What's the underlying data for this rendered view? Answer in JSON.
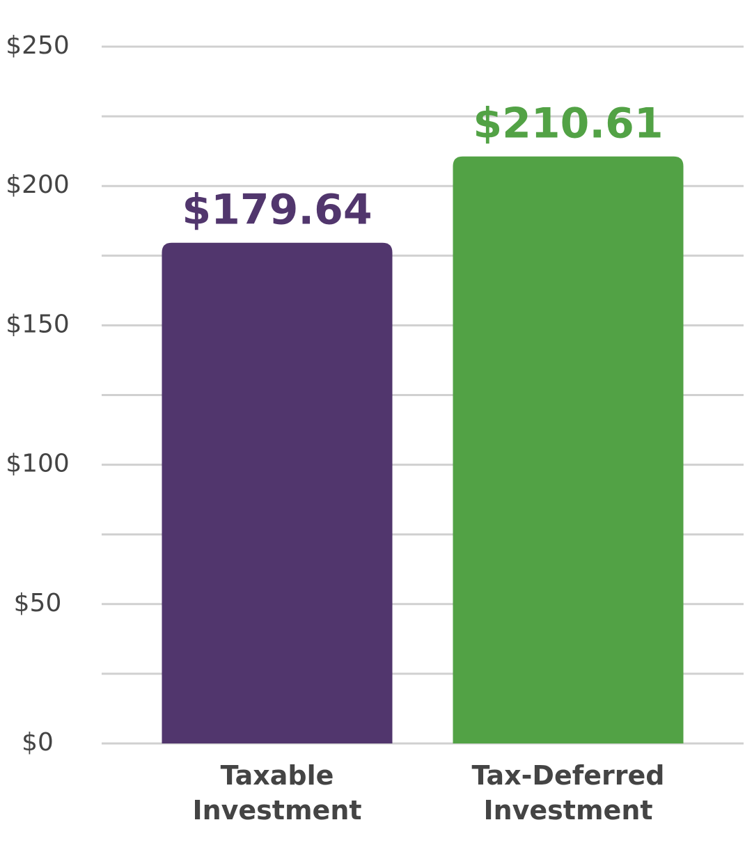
{
  "chart_data": {
    "type": "bar",
    "categories": [
      "Taxable\nInvestment",
      "Tax-Deferred\nInvestment"
    ],
    "values": [
      179.64,
      210.61
    ],
    "value_labels": [
      "$179.64",
      "$210.61"
    ],
    "colors": [
      "#51366d",
      "#52a245"
    ],
    "ylim": [
      0,
      250
    ],
    "yticks": [
      {
        "value": 0,
        "label": "$0"
      },
      {
        "value": 50,
        "label": "$50"
      },
      {
        "value": 100,
        "label": "$100"
      },
      {
        "value": 150,
        "label": "$150"
      },
      {
        "value": 200,
        "label": "$200"
      },
      {
        "value": 250,
        "label": "$250"
      }
    ],
    "minor_grid": [
      25,
      75,
      125,
      175,
      225
    ],
    "grid": true
  }
}
